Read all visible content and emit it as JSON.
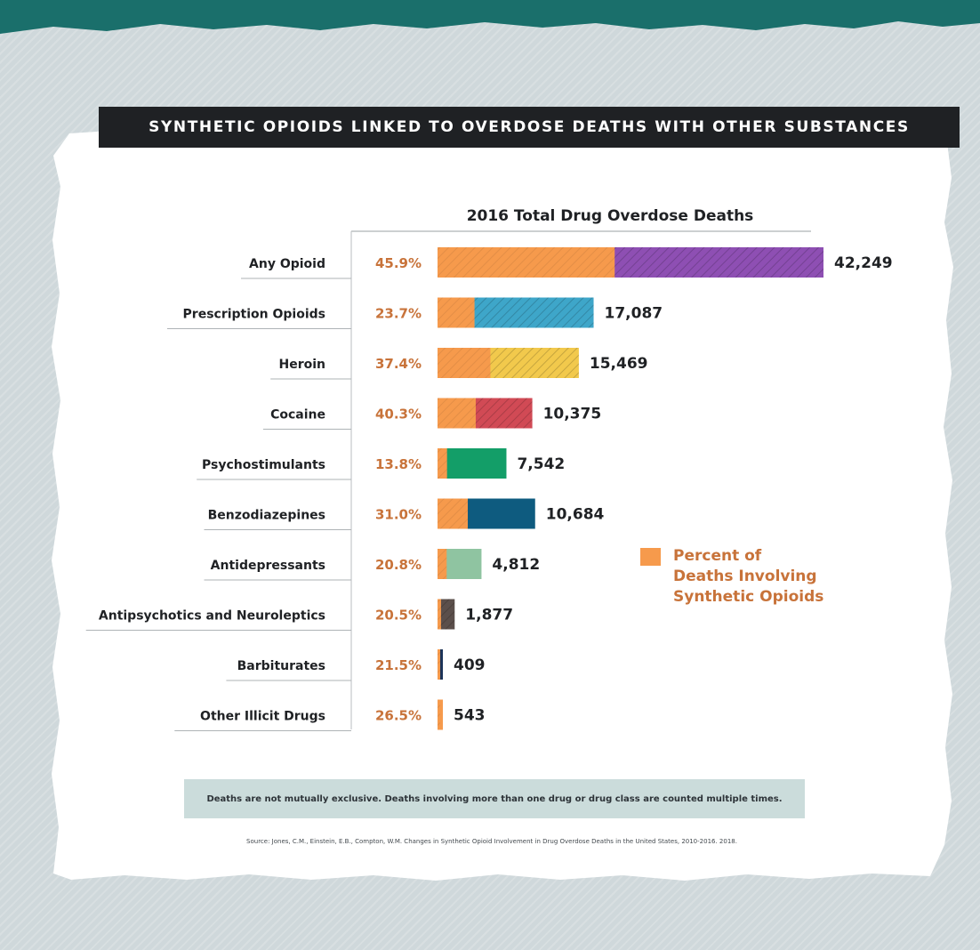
{
  "page": {
    "title": "SYNTHETIC OPIOIDS LINKED TO OVERDOSE DEATHS WITH OTHER SUBSTANCES",
    "note": "Deaths are not mutually exclusive. Deaths involving more than one drug or drug class are counted multiple times.",
    "source": "Source: Jones, C.M., Einstein, E.B., Compton, W.M. Changes in Synthetic Opioid Involvement in Drug Overdose Deaths in the United States, 2010-2016. 2018.",
    "colors": {
      "accent_band": "#1a6f6b",
      "synthetic_opioid_orange": "#f69a4c",
      "title_bar": "#1f2124"
    }
  },
  "chart_data": {
    "type": "bar",
    "orientation": "horizontal",
    "title": "2016 Total Drug Overdose Deaths",
    "xlim": [
      0,
      42249
    ],
    "legend": {
      "label_lines": [
        "Percent of",
        "Deaths Involving",
        "Synthetic Opioids"
      ],
      "color": "#f69a4c",
      "placement": "right"
    },
    "categories": [
      "Any Opioid",
      "Prescription Opioids",
      "Heroin",
      "Cocaine",
      "Psychostimulants",
      "Benzodiazepines",
      "Antidepressants",
      "Antipsychotics and Neuroleptics",
      "Barbiturates",
      "Other Illicit Drugs"
    ],
    "values": [
      42249,
      17087,
      15469,
      10375,
      7542,
      10684,
      4812,
      1877,
      409,
      543
    ],
    "value_labels": [
      "42,249",
      "17,087",
      "15,469",
      "10,375",
      "7,542",
      "10,684",
      "4,812",
      "1,877",
      "409",
      "543"
    ],
    "synthetic_percent": [
      45.9,
      23.7,
      37.4,
      40.3,
      13.8,
      31.0,
      20.8,
      20.5,
      21.5,
      26.5
    ],
    "percent_labels": [
      "45.9%",
      "23.7%",
      "37.4%",
      "40.3%",
      "13.8%",
      "31.0%",
      "20.8%",
      "20.5%",
      "21.5%",
      "26.5%"
    ],
    "colors": [
      "#8e4fb3",
      "#3ea6c9",
      "#f2c94c",
      "#d14a55",
      "#139e68",
      "#0e5b7f",
      "#8fc4a1",
      "#5b4f4b",
      "#1c3459",
      "#f69a4c"
    ],
    "hatched": [
      true,
      true,
      true,
      true,
      false,
      false,
      false,
      true,
      false,
      false
    ]
  }
}
